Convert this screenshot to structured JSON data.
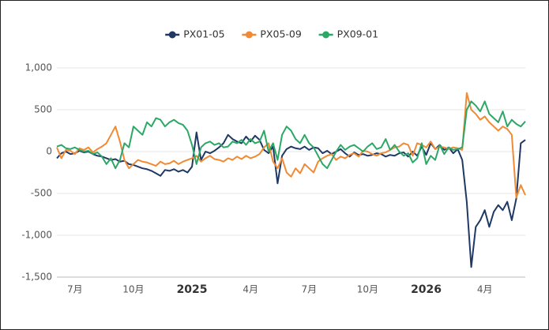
{
  "chart_data": {
    "type": "line",
    "categories": [
      null,
      null,
      null,
      null,
      "7月",
      null,
      null,
      null,
      null,
      null,
      null,
      null,
      null,
      null,
      null,
      null,
      null,
      "10月",
      null,
      null,
      null,
      null,
      null,
      null,
      null,
      null,
      null,
      null,
      null,
      null,
      "2025",
      null,
      null,
      null,
      null,
      null,
      null,
      null,
      null,
      null,
      null,
      null,
      null,
      "4月",
      null,
      null,
      null,
      null,
      null,
      null,
      null,
      null,
      null,
      null,
      null,
      null,
      "7月",
      null,
      null,
      null,
      null,
      null,
      null,
      null,
      null,
      null,
      null,
      null,
      null,
      "10月",
      null,
      null,
      null,
      null,
      null,
      null,
      null,
      null,
      null,
      null,
      null,
      null,
      "2026",
      null,
      null,
      null,
      null,
      null,
      null,
      null,
      null,
      null,
      null,
      null,
      null,
      "4月",
      null,
      null,
      null,
      null,
      null,
      null,
      null,
      null,
      null
    ],
    "series": [
      {
        "name": "PX01-05",
        "color": "#1f3864",
        "values": [
          -80,
          -20,
          0,
          -30,
          -20,
          10,
          -10,
          0,
          -30,
          -50,
          -60,
          -80,
          -100,
          -90,
          -120,
          -110,
          -150,
          -160,
          -180,
          -200,
          -210,
          -230,
          -260,
          -290,
          -220,
          -230,
          -210,
          -240,
          -220,
          -250,
          -180,
          230,
          -100,
          0,
          -20,
          10,
          50,
          100,
          200,
          150,
          120,
          100,
          180,
          120,
          190,
          140,
          20,
          -20,
          60,
          -380,
          -50,
          30,
          60,
          40,
          30,
          60,
          20,
          50,
          40,
          -20,
          10,
          -30,
          0,
          30,
          -20,
          -60,
          -10,
          -40,
          -30,
          -50,
          -40,
          -20,
          -30,
          -60,
          -40,
          -50,
          -20,
          -10,
          -60,
          0,
          -50,
          60,
          -40,
          100,
          30,
          80,
          20,
          50,
          -20,
          30,
          -100,
          -600,
          -1380,
          -900,
          -820,
          -700,
          -900,
          -720,
          -640,
          -700,
          -600,
          -820,
          -560,
          100,
          140
        ]
      },
      {
        "name": "PX05-09",
        "color": "#f08a35",
        "values": [
          50,
          -80,
          20,
          10,
          -30,
          40,
          20,
          50,
          -10,
          30,
          60,
          100,
          200,
          300,
          120,
          -100,
          -200,
          -150,
          -100,
          -120,
          -130,
          -150,
          -170,
          -120,
          -150,
          -140,
          -110,
          -150,
          -120,
          -100,
          -80,
          -50,
          -120,
          -80,
          -50,
          -90,
          -100,
          -120,
          -80,
          -100,
          -60,
          -90,
          -50,
          -80,
          -60,
          -30,
          50,
          100,
          -120,
          -200,
          -80,
          -250,
          -300,
          -200,
          -260,
          -150,
          -200,
          -250,
          -120,
          -80,
          -50,
          -30,
          -100,
          -60,
          -80,
          -40,
          -20,
          -60,
          10,
          0,
          -30,
          -50,
          -20,
          -10,
          20,
          50,
          60,
          100,
          80,
          -50,
          100,
          80,
          50,
          120,
          30,
          60,
          50,
          30,
          50,
          40,
          20,
          700,
          500,
          450,
          380,
          420,
          350,
          300,
          250,
          300,
          270,
          200,
          -550,
          -400,
          -520
        ]
      },
      {
        "name": "PX09-01",
        "color": "#2ba866",
        "values": [
          60,
          80,
          40,
          30,
          50,
          20,
          0,
          10,
          -30,
          -10,
          -60,
          -150,
          -80,
          -200,
          -100,
          100,
          50,
          300,
          250,
          200,
          350,
          300,
          400,
          380,
          300,
          350,
          380,
          340,
          320,
          250,
          80,
          -150,
          50,
          100,
          120,
          80,
          100,
          50,
          60,
          120,
          100,
          140,
          80,
          150,
          100,
          120,
          250,
          0,
          100,
          -100,
          200,
          300,
          250,
          150,
          100,
          200,
          100,
          50,
          -50,
          -150,
          -200,
          -100,
          0,
          80,
          20,
          60,
          80,
          40,
          0,
          60,
          100,
          30,
          50,
          150,
          20,
          80,
          0,
          -50,
          -20,
          -130,
          -80,
          100,
          -150,
          -50,
          -100,
          80,
          -30,
          50,
          20,
          30,
          50,
          500,
          600,
          550,
          480,
          600,
          450,
          400,
          350,
          480,
          300,
          380,
          330,
          300,
          360
        ]
      }
    ],
    "ylim": [
      -1500,
      1000
    ],
    "yticks": [
      {
        "value": 1000,
        "label": "1,000"
      },
      500,
      0,
      -500,
      {
        "value": -1000,
        "label": "-1,000"
      },
      {
        "value": -1500,
        "label": "-1,500"
      }
    ],
    "grid": true
  }
}
